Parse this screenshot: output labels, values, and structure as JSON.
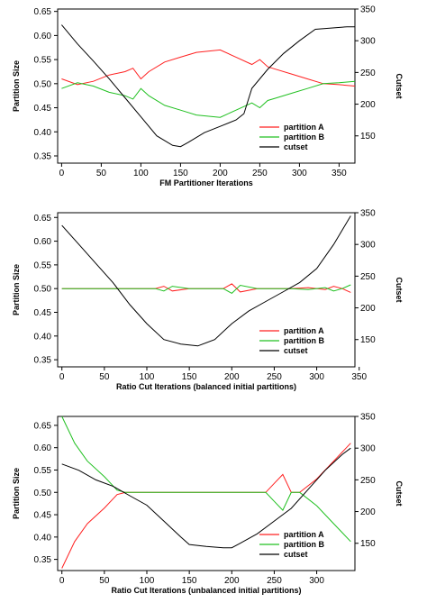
{
  "chart_data": [
    {
      "type": "line",
      "title": "",
      "xlabel": "FM Partitioner Iterations",
      "ylabel": "Partition Size",
      "y2label": "Cutset",
      "xlim": [
        -5,
        370
      ],
      "ylim": [
        0.335,
        0.655
      ],
      "y2lim": [
        107,
        350
      ],
      "xticks": [
        0,
        50,
        100,
        150,
        200,
        250,
        300,
        350
      ],
      "yticks": [
        0.35,
        0.4,
        0.45,
        0.5,
        0.55,
        0.6,
        0.65
      ],
      "y2ticks": [
        150,
        200,
        250,
        300,
        350
      ],
      "legend": "bottom-right",
      "series": [
        {
          "name": "partition A",
          "color": "#ff2020",
          "axis": "left",
          "x": [
            0,
            20,
            40,
            60,
            80,
            90,
            100,
            110,
            130,
            150,
            170,
            200,
            220,
            240,
            250,
            260,
            270,
            290,
            310,
            330,
            350,
            370
          ],
          "y": [
            0.51,
            0.498,
            0.505,
            0.518,
            0.525,
            0.532,
            0.51,
            0.525,
            0.545,
            0.555,
            0.565,
            0.57,
            0.555,
            0.54,
            0.55,
            0.535,
            0.53,
            0.52,
            0.51,
            0.5,
            0.498,
            0.495
          ]
        },
        {
          "name": "partition B",
          "color": "#20c020",
          "axis": "left",
          "x": [
            0,
            20,
            40,
            60,
            80,
            90,
            100,
            110,
            130,
            150,
            170,
            200,
            220,
            240,
            250,
            260,
            270,
            290,
            310,
            330,
            350,
            370
          ],
          "y": [
            0.49,
            0.502,
            0.495,
            0.482,
            0.475,
            0.468,
            0.49,
            0.475,
            0.455,
            0.445,
            0.435,
            0.43,
            0.445,
            0.46,
            0.45,
            0.465,
            0.47,
            0.48,
            0.49,
            0.5,
            0.502,
            0.505
          ]
        },
        {
          "name": "cutset",
          "color": "#000000",
          "axis": "right",
          "x": [
            0,
            20,
            40,
            60,
            80,
            100,
            120,
            140,
            150,
            160,
            180,
            200,
            220,
            230,
            240,
            260,
            280,
            300,
            320,
            340,
            360,
            370
          ],
          "y": [
            325,
            295,
            268,
            240,
            210,
            180,
            150,
            135,
            133,
            140,
            155,
            165,
            175,
            185,
            225,
            255,
            280,
            300,
            318,
            320,
            322,
            322
          ]
        }
      ]
    },
    {
      "type": "line",
      "title": "",
      "xlabel": "Ratio Cut Iterations (balanced initial partitions)",
      "ylabel": "Partition Size",
      "y2label": "Cutset",
      "xlim": [
        -5,
        345
      ],
      "ylim": [
        0.335,
        0.66
      ],
      "y2lim": [
        107,
        350
      ],
      "xticks": [
        0,
        50,
        100,
        150,
        200,
        250,
        300,
        350
      ],
      "yticks": [
        0.35,
        0.4,
        0.45,
        0.5,
        0.55,
        0.6,
        0.65
      ],
      "y2ticks": [
        150,
        200,
        250,
        300,
        350
      ],
      "legend": "bottom-right",
      "series": [
        {
          "name": "partition A",
          "color": "#ff2020",
          "axis": "left",
          "x": [
            0,
            30,
            60,
            90,
            110,
            120,
            130,
            150,
            170,
            190,
            200,
            210,
            230,
            250,
            270,
            290,
            310,
            320,
            330,
            340
          ],
          "y": [
            0.5,
            0.5,
            0.5,
            0.5,
            0.5,
            0.505,
            0.495,
            0.5,
            0.5,
            0.5,
            0.51,
            0.493,
            0.5,
            0.5,
            0.5,
            0.502,
            0.498,
            0.505,
            0.5,
            0.492
          ]
        },
        {
          "name": "partition B",
          "color": "#20c020",
          "axis": "left",
          "x": [
            0,
            30,
            60,
            90,
            110,
            120,
            130,
            150,
            170,
            190,
            200,
            210,
            230,
            250,
            270,
            290,
            310,
            320,
            330,
            340
          ],
          "y": [
            0.5,
            0.5,
            0.5,
            0.5,
            0.5,
            0.495,
            0.505,
            0.5,
            0.5,
            0.5,
            0.49,
            0.507,
            0.5,
            0.5,
            0.5,
            0.498,
            0.502,
            0.495,
            0.5,
            0.508
          ]
        },
        {
          "name": "cutset",
          "color": "#000000",
          "axis": "right",
          "x": [
            0,
            20,
            40,
            60,
            80,
            100,
            120,
            140,
            160,
            180,
            200,
            220,
            240,
            260,
            280,
            300,
            320,
            340
          ],
          "y": [
            330,
            300,
            270,
            240,
            205,
            175,
            150,
            143,
            140,
            150,
            175,
            195,
            210,
            225,
            240,
            262,
            300,
            345
          ]
        }
      ]
    },
    {
      "type": "line",
      "title": "",
      "xlabel": "Ratio Cut Iterations (unbalanced initial partitions)",
      "ylabel": "Partition Size",
      "y2label": "Cutset",
      "xlim": [
        -5,
        345
      ],
      "ylim": [
        0.325,
        0.67
      ],
      "y2lim": [
        107,
        350
      ],
      "xticks": [
        0,
        50,
        100,
        150,
        200,
        250,
        300
      ],
      "yticks": [
        0.35,
        0.4,
        0.45,
        0.5,
        0.55,
        0.6,
        0.65
      ],
      "y2ticks": [
        150,
        200,
        250,
        300,
        350
      ],
      "legend": "bottom-right",
      "series": [
        {
          "name": "partition A",
          "color": "#ff2020",
          "axis": "left",
          "x": [
            0,
            15,
            30,
            50,
            65,
            75,
            100,
            150,
            200,
            240,
            250,
            260,
            270,
            280,
            300,
            320,
            340
          ],
          "y": [
            0.33,
            0.39,
            0.43,
            0.465,
            0.495,
            0.5,
            0.5,
            0.5,
            0.5,
            0.5,
            0.52,
            0.54,
            0.5,
            0.5,
            0.53,
            0.57,
            0.61
          ]
        },
        {
          "name": "partition B",
          "color": "#20c020",
          "axis": "left",
          "x": [
            0,
            15,
            30,
            50,
            65,
            75,
            100,
            150,
            200,
            240,
            250,
            260,
            270,
            280,
            300,
            320,
            340
          ],
          "y": [
            0.67,
            0.61,
            0.57,
            0.535,
            0.505,
            0.5,
            0.5,
            0.5,
            0.5,
            0.5,
            0.48,
            0.46,
            0.5,
            0.5,
            0.47,
            0.43,
            0.39
          ]
        },
        {
          "name": "cutset",
          "color": "#000000",
          "axis": "right",
          "x": [
            0,
            20,
            40,
            60,
            80,
            100,
            120,
            140,
            150,
            170,
            190,
            200,
            210,
            230,
            250,
            270,
            290,
            310,
            330,
            340
          ],
          "y": [
            275,
            265,
            250,
            240,
            225,
            210,
            185,
            160,
            148,
            145,
            143,
            143,
            150,
            165,
            185,
            205,
            235,
            265,
            290,
            300
          ]
        }
      ]
    }
  ]
}
